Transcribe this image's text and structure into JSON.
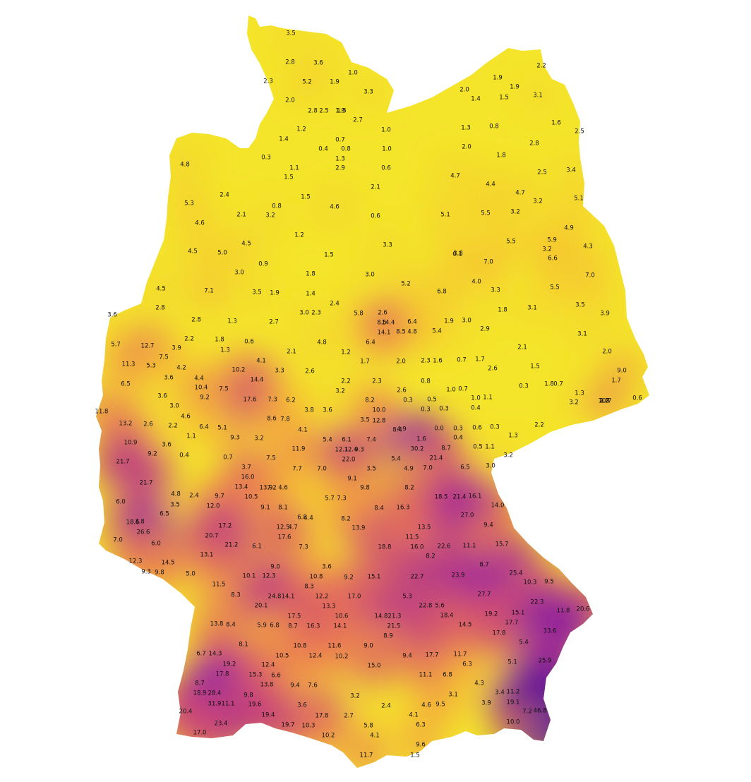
{
  "map": {
    "type": "interpolated-heatmap",
    "region": "Germany",
    "colormap": [
      "#f2ee2a",
      "#f8b233",
      "#e97158",
      "#c7417a",
      "#8f18a8",
      "#55049c"
    ],
    "values": [
      "3.5",
      "2.8",
      "3.6",
      "2.3",
      "5.2",
      "1.9",
      "1.0",
      "3.3",
      "2.0",
      "2.8",
      "2.5",
      "1.9",
      "1.5",
      "2.7",
      "1.2",
      "1.0",
      "1.4",
      "0.7",
      "0.4",
      "0.8",
      "1.0",
      "0.3",
      "1.3",
      "1.1",
      "2.9",
      "0.6",
      "1.5",
      "4.8",
      "2.1",
      "2.4",
      "5.3",
      "1.5",
      "0.8",
      "4.6",
      "2.1",
      "3.2",
      "0.6",
      "4.6",
      "1.2",
      "4.5",
      "5.0",
      "4.5",
      "1.5",
      "3.0",
      "0.9",
      "1.8",
      "3.0",
      "3.3",
      "4.5",
      "7.1",
      "3.5",
      "1.9",
      "1.4",
      "2.4",
      "2.8",
      "3.0",
      "2.3",
      "5.8",
      "2.6",
      "3.6",
      "2.8",
      "1.3",
      "2.7",
      "8.5",
      "14.4",
      "6.4",
      "1.9",
      "3.0",
      "14.1",
      "8.5",
      "4.8",
      "5.4",
      "2.9",
      "12.7",
      "5.7",
      "3.9",
      "1.8",
      "0.6",
      "4.8",
      "6.4",
      "2.2",
      "7.5",
      "1.3",
      "2.1",
      "1.2",
      "11.3",
      "5.3",
      "4.2",
      "4.1",
      "3.6",
      "10.2",
      "3.3",
      "2.6",
      "1.7",
      "2.0",
      "2.3",
      "1.6",
      "0.7",
      "1.7",
      "2.6",
      "14.4",
      "2.2",
      "2.3",
      "0.8",
      "6.5",
      "4.4",
      "10.4",
      "7.5",
      "3.2",
      "2.6",
      "1.0",
      "0.7",
      "3.6",
      "9.2",
      "17.6",
      "7.3",
      "6.2",
      "8.2",
      "0.3",
      "0.5",
      "1.0",
      "1.1",
      "11.8",
      "3.0",
      "3.8",
      "3.6",
      "10.0",
      "0.3",
      "0.3",
      "0.4",
      "4.6",
      "8.6",
      "7.8",
      "3.5",
      "12.8",
      "13.2",
      "2.6",
      "2.2",
      "6.4",
      "5.1",
      "4.1",
      "8.4",
      "4.9",
      "0.0",
      "0.3",
      "0.6",
      "0.3",
      "10.9",
      "1.1",
      "9.3",
      "3.2",
      "5.4",
      "6.1",
      "7.4",
      "1.6",
      "0.4",
      "3.6",
      "11.9",
      "12.1",
      "12.4",
      "9.3",
      "30.2",
      "8.7",
      "0.5",
      "1.1",
      "9.2",
      "0.4",
      "0.7",
      "7.5",
      "22.0",
      "5.4",
      "21.4",
      "21.7",
      "3.7",
      "7.7",
      "7.0",
      "3.5",
      "4.9",
      "7.0",
      "6.5",
      "3.0",
      "16.0",
      "9.1",
      "21.7",
      "13.4",
      "13.9",
      "7.2",
      "4.6",
      "9.8",
      "8.2",
      "4.8",
      "2.4",
      "9.7",
      "10.5",
      "5.7",
      "7.3",
      "18.5",
      "21.4",
      "16.1",
      "6.0",
      "3.5",
      "12.0",
      "9.1",
      "8.1",
      "8.4",
      "16.3",
      "6.5",
      "6.8",
      "4.4",
      "8.2",
      "14.0",
      "18.6",
      "3.8",
      "17.2",
      "12.5",
      "4.7",
      "13.9",
      "13.5",
      "27.0",
      "9.4",
      "26.6",
      "20.7",
      "17.6",
      "7.0",
      "6.0",
      "21.2",
      "6.1",
      "7.3",
      "18.8",
      "16.0",
      "22.6",
      "11.1",
      "15.7",
      "11.5",
      "13.1",
      "12.3",
      "14.5",
      "8.2",
      "8.7",
      "9.3",
      "9.8",
      "9.0",
      "3.6",
      "5.0",
      "10.1",
      "12.3",
      "10.8",
      "9.2",
      "15.1",
      "22.7",
      "23.9",
      "25.4",
      "11.5",
      "10.3",
      "9.5",
      "8.3",
      "8.3",
      "24.8",
      "14.1",
      "12.2",
      "17.0",
      "5.3",
      "27.7",
      "20.1",
      "13.3",
      "22.8",
      "5.6",
      "22.3",
      "17.5",
      "10.6",
      "14.8",
      "21.3",
      "18.4",
      "19.2",
      "15.1",
      "11.8",
      "20.6",
      "13.8",
      "8.4",
      "5.9",
      "6.8",
      "8.7",
      "16.3",
      "14.1",
      "21.5",
      "17.7",
      "14.5",
      "17.8",
      "8.9",
      "33.6",
      "8.1",
      "10.8",
      "11.6",
      "9.0",
      "5.4",
      "6.7",
      "14.3",
      "10.5",
      "12.4",
      "10.2",
      "9.4",
      "17.7",
      "11.7",
      "19.2",
      "12.4",
      "15.0",
      "6.3",
      "5.1",
      "25.9",
      "17.8",
      "15.3",
      "6.6",
      "11.1",
      "6.8",
      "8.7",
      "13.8",
      "9.4",
      "7.6",
      "4.3",
      "18.9",
      "28.4",
      "9.8",
      "3.1",
      "3.4",
      "11.2",
      "3.2",
      "3.9",
      "19.1",
      "31.9",
      "11.1",
      "19.6",
      "3.6",
      "2.4",
      "4.6",
      "9.5",
      "20.4",
      "19.4",
      "17.8",
      "2.7",
      "4.1",
      "7.2",
      "46.8",
      "23.4",
      "19.7",
      "10.3",
      "5.8",
      "6.3",
      "10.0",
      "17.0",
      "10.2",
      "4.1",
      "9.6",
      "11.7",
      "1.5",
      "1.9",
      "1.4",
      "1.5",
      "3.1",
      "2.2",
      "2.0",
      "1.9",
      "1.6",
      "2.5",
      "1.3",
      "0.8",
      "2.8",
      "2.0",
      "1.8",
      "2.5",
      "3.4",
      "4.4",
      "4.7",
      "4.7",
      "3.2",
      "5.1",
      "5.1",
      "5.5",
      "3.2",
      "4.9",
      "5.9",
      "5.5",
      "3.2",
      "4.3",
      "6.6",
      "6.1",
      "7.0",
      "4.0",
      "7.0",
      "3.8",
      "5.5",
      "5.2",
      "6.8",
      "3.3",
      "3.5",
      "3.1",
      "1.8",
      "3.9",
      "3.1",
      "2.1",
      "2.0",
      "1.5",
      "9.0",
      "1.7",
      "1.8",
      "0.7",
      "1.3",
      "3.2",
      "10.7",
      "0.6",
      "2.2",
      "0.3",
      "1.3",
      "3.2",
      "2.2",
      "1.8"
    ]
  }
}
